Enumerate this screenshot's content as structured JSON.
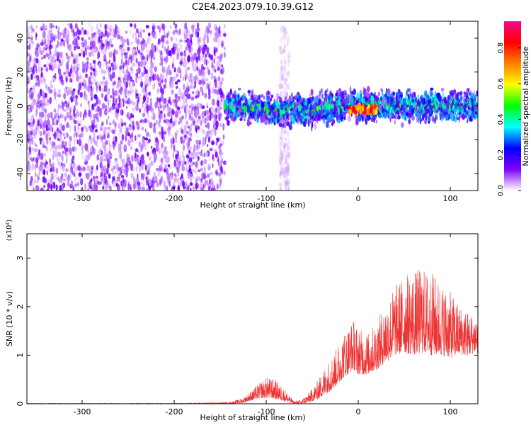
{
  "title": "C2E4.2023.079.10.39.G12",
  "chart_data": [
    {
      "type": "heatmap",
      "xlabel": "Height of straight line (km)",
      "ylabel": "Frequency (Hz)",
      "xlim": [
        -360,
        130
      ],
      "ylim": [
        -50,
        50
      ],
      "xticks": [
        -300,
        -200,
        -100,
        0,
        100
      ],
      "yticks": [
        -40,
        -20,
        0,
        20,
        40
      ],
      "grid": false,
      "colorbar": {
        "label": "Normalized spectral amplitude",
        "range": [
          0,
          0.95
        ],
        "ticks": [
          0.0,
          0.2,
          0.4,
          0.6,
          0.8
        ],
        "colormap": [
          "#ffffff",
          "#7e00ff",
          "#0000ff",
          "#00ffff",
          "#00ff00",
          "#ffff00",
          "#ff8000",
          "#ff0000",
          "#ff0090"
        ]
      },
      "regions": [
        {
          "x_range": [
            -360,
            -145
          ],
          "freq_range": [
            -50,
            48
          ],
          "amplitude": [
            0.0,
            0.12
          ]
        },
        {
          "x_range": [
            -145,
            130
          ],
          "freq_center": 0,
          "freq_halfwidth": 12,
          "amplitude": [
            0.05,
            0.5
          ]
        },
        {
          "x_range": [
            -85,
            -75
          ],
          "freq_range": [
            -50,
            48
          ],
          "amplitude": [
            0.0,
            0.08
          ]
        },
        {
          "x_range": [
            -10,
            20
          ],
          "freq_center": -2,
          "amplitude": [
            0.6,
            0.95
          ]
        }
      ]
    },
    {
      "type": "line",
      "xlabel": "Height of straight line (km)",
      "ylabel": "SNR (10 * v/v)",
      "y_multiplier": "(x10⁴)",
      "xlim": [
        -360,
        130
      ],
      "ylim": [
        0,
        3.5
      ],
      "xticks": [
        -300,
        -200,
        -100,
        0,
        100
      ],
      "yticks": [
        0,
        1,
        2,
        3
      ],
      "grid": false,
      "series": [
        {
          "color": "#ee3333",
          "envelope": {
            "x": [
              -360,
              -200,
              -140,
              -125,
              -110,
              -100,
              -90,
              -80,
              -70,
              -62,
              -55,
              -45,
              -35,
              -25,
              -15,
              -5,
              0,
              10,
              20,
              30,
              40,
              50,
              60,
              70,
              80,
              90,
              100,
              110,
              120,
              130
            ],
            "y": [
              0.01,
              0.01,
              0.03,
              0.12,
              0.38,
              0.55,
              0.5,
              0.3,
              0.05,
              0.08,
              0.2,
              0.45,
              0.8,
              1.1,
              1.5,
              1.75,
              1.55,
              1.45,
              1.7,
              2.1,
              2.45,
              2.65,
              2.75,
              2.8,
              2.7,
              2.5,
              2.3,
              2.05,
              1.9,
              1.85
            ]
          },
          "baseline": {
            "x": [
              -360,
              -200,
              -140,
              -125,
              -110,
              -100,
              -90,
              -80,
              -70,
              -62,
              -55,
              -45,
              -35,
              -25,
              -15,
              -5,
              0,
              10,
              20,
              30,
              40,
              50,
              60,
              70,
              80,
              90,
              100,
              110,
              120,
              130
            ],
            "y": [
              0.0,
              0.0,
              0.0,
              0.02,
              0.1,
              0.12,
              0.1,
              0.05,
              0.01,
              0.0,
              0.02,
              0.08,
              0.2,
              0.35,
              0.55,
              0.7,
              0.6,
              0.6,
              0.7,
              0.85,
              1.0,
              1.05,
              1.0,
              1.05,
              1.0,
              1.0,
              0.95,
              1.0,
              1.0,
              1.05
            ]
          }
        }
      ]
    }
  ]
}
